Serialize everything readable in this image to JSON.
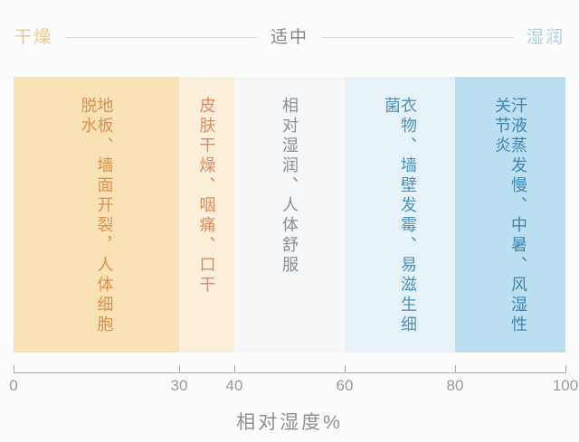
{
  "header": {
    "zones": [
      {
        "label": "干燥",
        "color": "#ECC795"
      },
      {
        "label": "适中",
        "color": "#85878A"
      },
      {
        "label": "湿润",
        "color": "#ABD3E5"
      }
    ],
    "line_color": "#DADBDC"
  },
  "chart_data": {
    "type": "bar",
    "subtype": "horizontal-category-bands",
    "title": "",
    "xlabel": "相对湿度%",
    "ylabel": "",
    "xlim": [
      0,
      100
    ],
    "x_ticks": [
      0,
      30,
      40,
      60,
      80,
      100
    ],
    "grid": false,
    "zone_scale": [
      {
        "label": "干燥",
        "range": [
          0,
          40
        ]
      },
      {
        "label": "适中",
        "range": [
          40,
          60
        ]
      },
      {
        "label": "湿润",
        "range": [
          60,
          100
        ]
      }
    ],
    "bands": [
      {
        "range": [
          0,
          30
        ],
        "label": "地板、墙面开裂，人体细胞脱水",
        "bg": "#F8E2B6",
        "text_color": "#E0914E"
      },
      {
        "range": [
          30,
          40
        ],
        "label": "皮肤干燥、咽痛、口干",
        "bg": "#FCEFD9",
        "text_color": "#DC8B5F"
      },
      {
        "range": [
          40,
          60
        ],
        "label": "相对湿润、人体舒服",
        "bg": "#F4F6F7",
        "text_color": "#8C9094"
      },
      {
        "range": [
          60,
          80
        ],
        "label": "衣物、墙壁发霉、易滋生细菌",
        "bg": "#E6F2F8",
        "text_color": "#4D93BE"
      },
      {
        "range": [
          80,
          100
        ],
        "label": "汗液蒸发慢、中暑、风湿性关节炎",
        "bg": "#BCDFEF",
        "text_color": "#3F86B2"
      }
    ]
  },
  "axis": {
    "label": "相对湿度%",
    "line_color": "#ACAEB0",
    "tick_color": "#ACAEB0",
    "tick_label_color": "#97999C",
    "title_color": "#8E9093"
  }
}
